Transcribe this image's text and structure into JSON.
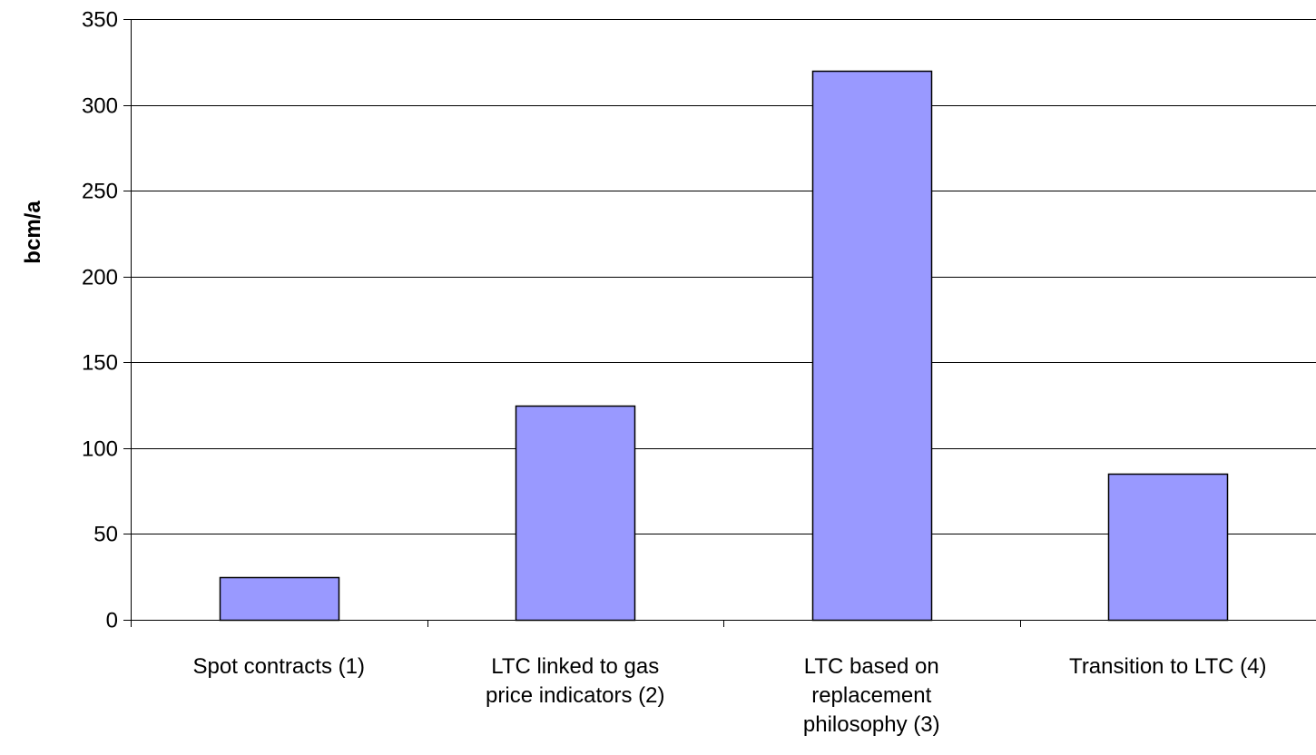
{
  "chart_data": {
    "type": "bar",
    "categories": [
      [
        "Spot contracts (1)"
      ],
      [
        "LTC linked to gas",
        "price indicators (2)"
      ],
      [
        "LTC based on",
        "replacement",
        "philosophy (3)"
      ],
      [
        "Transition to LTC (4)"
      ]
    ],
    "series": [
      {
        "values": [
          25,
          125,
          320,
          85
        ]
      }
    ],
    "title": "",
    "xlabel": "",
    "ylabel": "bcm/a",
    "ylim": [
      0,
      350
    ],
    "yticks": [
      0,
      50,
      100,
      150,
      200,
      250,
      300,
      350
    ],
    "grid": true,
    "legend": "none",
    "colors": {
      "bar_fill": "#9999ff",
      "bar_stroke": "#000000",
      "grid": "#000000",
      "axis": "#000000"
    }
  }
}
